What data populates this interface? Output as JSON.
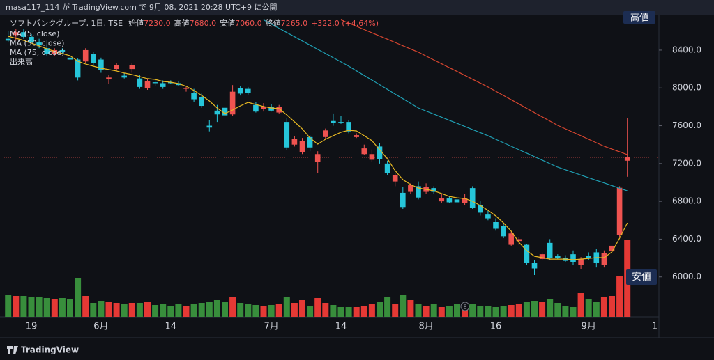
{
  "header": "masa117_114 が TradingView.com で 9月 08, 2021 20:28 UTC+9 に公開",
  "footer": "TradingView",
  "chart_data": {
    "type": "candlestick",
    "symbol": "ソフトバンクグループ, 1日, TSE",
    "ohlc_legend": [
      {
        "label": "始値",
        "value": "7230.0"
      },
      {
        "label": "高値",
        "value": "7680.0"
      },
      {
        "label": "安値",
        "value": "7060.0"
      },
      {
        "label": "終値",
        "value": "7265.0"
      }
    ],
    "change": "+322.0 (+4.64%)",
    "volume_name": "出来高",
    "high_marker": "高値",
    "low_marker": "安値",
    "time_axis_edge_label": "1",
    "up_color": "#ef5350",
    "down_color": "#26c6da",
    "volume_up_color": "#e53935",
    "volume_down_color": "#388e3c",
    "last_price_line": true,
    "ylim": [
      5578,
      8768
    ],
    "yticks": [
      {
        "value": 6000,
        "label": "6000.0"
      },
      {
        "value": 6400,
        "label": "6400.0"
      },
      {
        "value": 6800,
        "label": "6800.0"
      },
      {
        "value": 7200,
        "label": "7200.0"
      },
      {
        "value": 7600,
        "label": "7600.0"
      },
      {
        "value": 8000,
        "label": "8000.0"
      },
      {
        "value": 8400,
        "label": "8400.0"
      }
    ],
    "categories": [
      null,
      null,
      null,
      "19",
      null,
      null,
      null,
      null,
      null,
      null,
      null,
      null,
      "6月",
      null,
      null,
      null,
      null,
      null,
      null,
      null,
      null,
      "14",
      null,
      null,
      null,
      null,
      null,
      null,
      null,
      null,
      null,
      null,
      null,
      null,
      "7月",
      null,
      null,
      null,
      null,
      null,
      null,
      null,
      null,
      "14",
      null,
      null,
      null,
      null,
      null,
      null,
      null,
      null,
      null,
      null,
      "8月",
      null,
      null,
      null,
      null,
      null,
      null,
      null,
      null,
      "16",
      null,
      null,
      null,
      null,
      null,
      null,
      null,
      null,
      null,
      null,
      null,
      "9月",
      null,
      null,
      null,
      null,
      null
    ],
    "open": [
      8520,
      8560,
      8590,
      8540,
      8480,
      8420,
      8360,
      8400,
      8320,
      8300,
      8280,
      8360,
      8300,
      8090,
      8200,
      8130,
      8200,
      8100,
      8000,
      8060,
      8050,
      8060,
      8050,
      7990,
      7950,
      7900,
      7600,
      7760,
      7790,
      7720,
      8000,
      7990,
      7820,
      7780,
      7800,
      7740,
      7640,
      7400,
      7320,
      7480,
      7220,
      7480,
      7650,
      7640,
      7640,
      7480,
      7300,
      7240,
      7380,
      7200,
      7010,
      6890,
      6900,
      6960,
      6900,
      6940,
      6800,
      6830,
      6820,
      6780,
      6940,
      6760,
      6660,
      6580,
      6540,
      6340,
      6380,
      6340,
      6150,
      6190,
      6360,
      6220,
      6200,
      6240,
      6130,
      6220,
      6260,
      6130,
      6270,
      6440,
      7230
    ],
    "high": [
      8600,
      8620,
      8620,
      8570,
      8520,
      8460,
      8420,
      8420,
      8360,
      8310,
      8420,
      8380,
      8320,
      8140,
      8260,
      8160,
      8260,
      8140,
      8090,
      8100,
      8080,
      8080,
      8070,
      8010,
      7990,
      7940,
      7660,
      7820,
      7840,
      8030,
      8020,
      8010,
      7850,
      7840,
      7830,
      7820,
      7680,
      7490,
      7470,
      7500,
      7330,
      7570,
      7730,
      7700,
      7660,
      7520,
      7400,
      7350,
      7420,
      7230,
      7100,
      6950,
      6990,
      7010,
      6990,
      6960,
      6880,
      6860,
      6840,
      6880,
      6960,
      6800,
      6700,
      6620,
      6570,
      6480,
      6420,
      6350,
      6180,
      6260,
      6400,
      6240,
      6230,
      6280,
      6210,
      6260,
      6300,
      6280,
      6360,
      6960,
      7680
    ],
    "low": [
      8480,
      8500,
      8520,
      8470,
      8420,
      8340,
      8340,
      8360,
      8260,
      8080,
      8260,
      8240,
      8160,
      8040,
      8180,
      8100,
      8160,
      7990,
      7980,
      8020,
      7990,
      8040,
      8020,
      7960,
      7850,
      7790,
      7540,
      7640,
      7700,
      7700,
      7920,
      7930,
      7740,
      7750,
      7750,
      7730,
      7340,
      7380,
      7300,
      7330,
      7100,
      7460,
      7600,
      7620,
      7520,
      7470,
      7290,
      7220,
      7200,
      7080,
      6960,
      6720,
      6880,
      6820,
      6880,
      6880,
      6780,
      6780,
      6770,
      6760,
      6720,
      6650,
      6600,
      6490,
      6410,
      6330,
      6340,
      6130,
      6020,
      6180,
      6180,
      6190,
      6160,
      6130,
      6080,
      6180,
      6100,
      6100,
      6250,
      6420,
      7060
    ],
    "close": [
      8500,
      8590,
      8540,
      8480,
      8450,
      8360,
      8400,
      8380,
      8300,
      8110,
      8400,
      8260,
      8190,
      8110,
      8240,
      8110,
      8240,
      8010,
      8070,
      8050,
      8010,
      8050,
      8030,
      8000,
      7880,
      7810,
      7580,
      7720,
      7710,
      7960,
      7940,
      7950,
      7750,
      7800,
      7760,
      7800,
      7370,
      7460,
      7440,
      7370,
      7300,
      7550,
      7630,
      7630,
      7540,
      7500,
      7360,
      7300,
      7250,
      7100,
      7080,
      6740,
      6970,
      6840,
      6950,
      6900,
      6830,
      6790,
      6790,
      6830,
      6730,
      6680,
      6620,
      6510,
      6430,
      6460,
      6400,
      6150,
      6090,
      6240,
      6200,
      6200,
      6170,
      6160,
      6190,
      6200,
      6150,
      6250,
      6330,
      6943,
      7265
    ],
    "volume": [
      32,
      30,
      30,
      28,
      28,
      27,
      25,
      27,
      25,
      56,
      30,
      20,
      23,
      22,
      20,
      18,
      20,
      20,
      22,
      17,
      18,
      16,
      18,
      15,
      18,
      20,
      22,
      24,
      22,
      28,
      20,
      18,
      17,
      16,
      17,
      18,
      28,
      20,
      24,
      16,
      27,
      20,
      17,
      14,
      14,
      14,
      16,
      18,
      22,
      28,
      18,
      32,
      24,
      18,
      16,
      18,
      14,
      16,
      18,
      16,
      18,
      16,
      16,
      14,
      16,
      17,
      18,
      22,
      23,
      22,
      26,
      20,
      16,
      14,
      34,
      26,
      22,
      28,
      30,
      58,
      110
    ],
    "ma": [
      {
        "name": "MA (5, close)",
        "color": "#e8b923",
        "values": [
          8547,
          8525,
          8503,
          8474,
          8444,
          8415,
          8385,
          8363,
          8341,
          8282,
          8253,
          8230,
          8208,
          8194,
          8179,
          8157,
          8142,
          8120,
          8098,
          8090,
          8068,
          8061,
          8046,
          8017,
          7973,
          7921,
          7862,
          7788,
          7729,
          7766,
          7810,
          7847,
          7825,
          7803,
          7788,
          7781,
          7715,
          7641,
          7567,
          7471,
          7405,
          7457,
          7494,
          7530,
          7552,
          7545,
          7494,
          7442,
          7346,
          7250,
          7125,
          7029,
          6978,
          6941,
          6926,
          6911,
          6882,
          6852,
          6837,
          6830,
          6801,
          6756,
          6705,
          6646,
          6572,
          6484,
          6366,
          6278,
          6219,
          6204,
          6189,
          6189,
          6189,
          6182,
          6189,
          6196,
          6204,
          6204,
          6263,
          6410,
          6572
        ]
      },
      {
        "name": "MA (50, close)",
        "color": "#1f9fb3",
        "values": [
          null,
          null,
          null,
          null,
          null,
          null,
          null,
          null,
          null,
          null,
          null,
          null,
          null,
          null,
          null,
          null,
          null,
          null,
          null,
          null,
          null,
          null,
          null,
          null,
          null,
          null,
          null,
          null,
          null,
          null,
          null,
          null,
          null,
          8720,
          8675,
          8631,
          8586,
          8542,
          8497,
          8453,
          8408,
          8364,
          8319,
          8275,
          8230,
          8181,
          8132,
          8083,
          8034,
          7985,
          7935,
          7886,
          7837,
          7788,
          7755,
          7723,
          7690,
          7657,
          7625,
          7592,
          7559,
          7527,
          7494,
          7457,
          7420,
          7383,
          7346,
          7310,
          7273,
          7236,
          7199,
          7162,
          7134,
          7106,
          7078,
          7050,
          7022,
          6995,
          6967,
          6939,
          6911
        ]
      },
      {
        "name": "MA (75, close)",
        "color": "#d6452f",
        "values": [
          null,
          null,
          null,
          null,
          null,
          null,
          null,
          null,
          null,
          null,
          null,
          null,
          null,
          null,
          null,
          null,
          null,
          null,
          null,
          null,
          null,
          null,
          null,
          null,
          null,
          null,
          null,
          null,
          null,
          null,
          null,
          null,
          null,
          null,
          null,
          null,
          null,
          null,
          null,
          null,
          null,
          null,
          null,
          8720,
          8686,
          8652,
          8617,
          8583,
          8549,
          8515,
          8481,
          8446,
          8412,
          8378,
          8337,
          8296,
          8255,
          8214,
          8174,
          8133,
          8092,
          8051,
          8010,
          7965,
          7920,
          7875,
          7830,
          7784,
          7739,
          7694,
          7649,
          7604,
          7567,
          7530,
          7494,
          7457,
          7420,
          7383,
          7353,
          7324,
          7294
        ]
      }
    ]
  }
}
